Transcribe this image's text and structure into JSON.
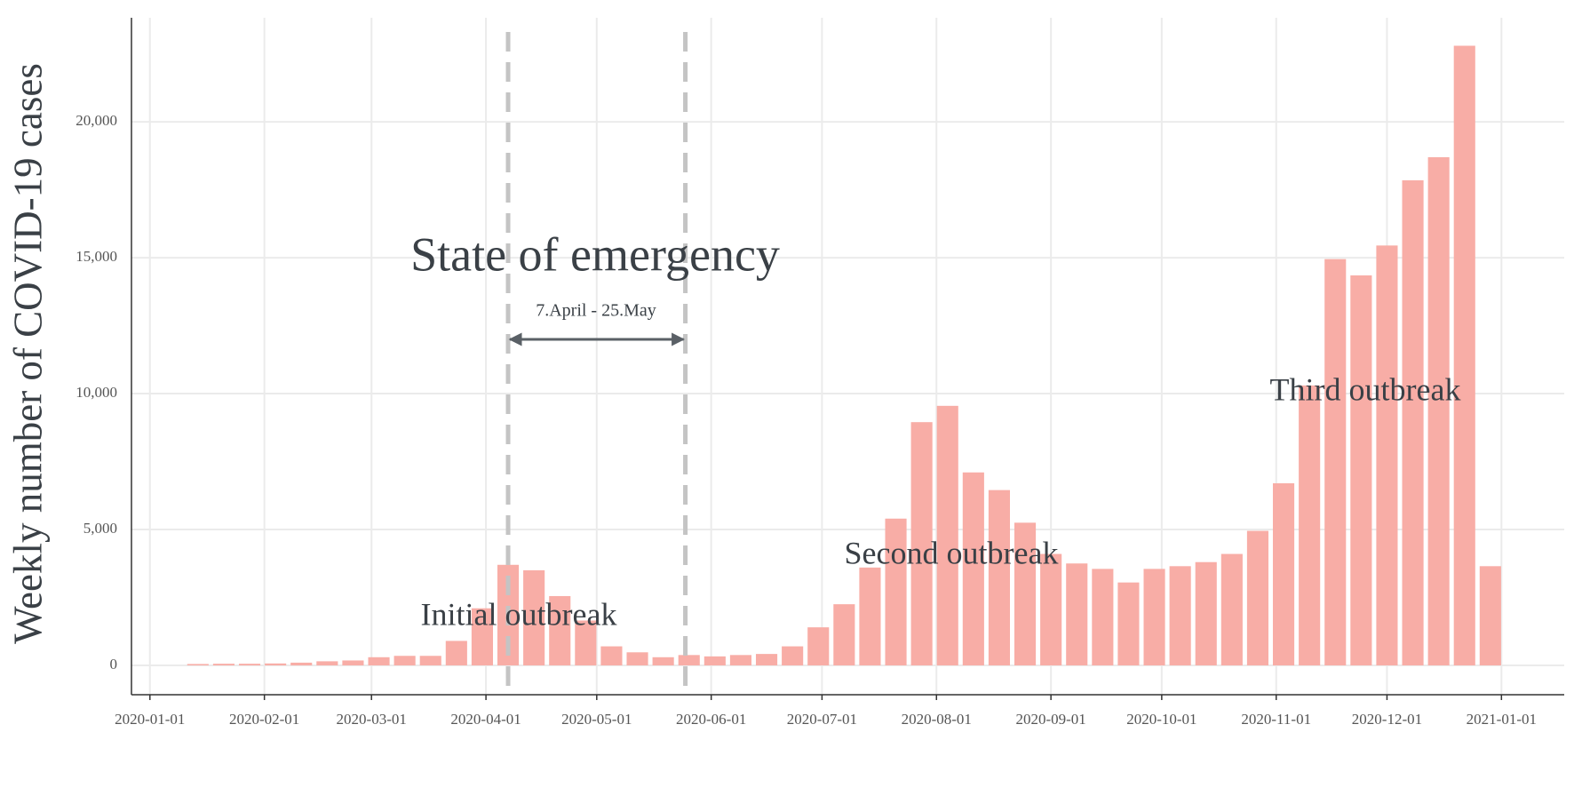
{
  "chart_data": {
    "type": "bar",
    "y_label": "Weekly number of COVID-19 cases",
    "x": [
      "2020-01-14",
      "2020-01-21",
      "2020-01-28",
      "2020-02-04",
      "2020-02-11",
      "2020-02-18",
      "2020-02-25",
      "2020-03-03",
      "2020-03-10",
      "2020-03-17",
      "2020-03-24",
      "2020-03-31",
      "2020-04-07",
      "2020-04-14",
      "2020-04-21",
      "2020-04-28",
      "2020-05-05",
      "2020-05-12",
      "2020-05-19",
      "2020-05-26",
      "2020-06-02",
      "2020-06-09",
      "2020-06-16",
      "2020-06-23",
      "2020-06-30",
      "2020-07-07",
      "2020-07-14",
      "2020-07-21",
      "2020-07-28",
      "2020-08-04",
      "2020-08-11",
      "2020-08-18",
      "2020-08-25",
      "2020-09-01",
      "2020-09-08",
      "2020-09-15",
      "2020-09-22",
      "2020-09-29",
      "2020-10-06",
      "2020-10-13",
      "2020-10-20",
      "2020-10-27",
      "2020-11-03",
      "2020-11-10",
      "2020-11-17",
      "2020-11-24",
      "2020-12-01",
      "2020-12-08",
      "2020-12-15",
      "2020-12-22",
      "2020-12-29"
    ],
    "values": [
      50,
      60,
      60,
      70,
      100,
      150,
      180,
      300,
      350,
      350,
      900,
      2100,
      3700,
      3500,
      2550,
      1650,
      700,
      480,
      300,
      380,
      330,
      380,
      420,
      700,
      1400,
      2250,
      3600,
      5400,
      8950,
      9550,
      7100,
      6450,
      5250,
      4100,
      3750,
      3550,
      3050,
      3550,
      3650,
      3800,
      4100,
      4950,
      6700,
      10300,
      14950,
      14350,
      15450,
      17850,
      18700,
      22800,
      3650
    ],
    "color": "#f8ada6",
    "xlim": [
      "2019-12-27",
      "2021-01-18"
    ],
    "xticks": [
      "2020-01-01",
      "2020-02-01",
      "2020-03-01",
      "2020-04-01",
      "2020-05-01",
      "2020-06-01",
      "2020-07-01",
      "2020-08-01",
      "2020-09-01",
      "2020-10-01",
      "2020-11-01",
      "2020-12-01",
      "2021-01-01"
    ],
    "ylim": [
      -1080,
      23830
    ],
    "yticks": [
      0,
      {
        "value": 5000,
        "label": "5,000"
      },
      {
        "value": 10000,
        "label": "10,000"
      },
      {
        "value": 15000,
        "label": "15,000"
      },
      {
        "value": 20000,
        "label": "20,000"
      }
    ],
    "grid": true,
    "vlines": [
      "2020-04-07",
      "2020-05-25"
    ],
    "annotations": [
      "State of emergency",
      "7.April - 25.May",
      "Initial outbreak",
      "Second outbreak",
      "Third outbreak"
    ]
  }
}
